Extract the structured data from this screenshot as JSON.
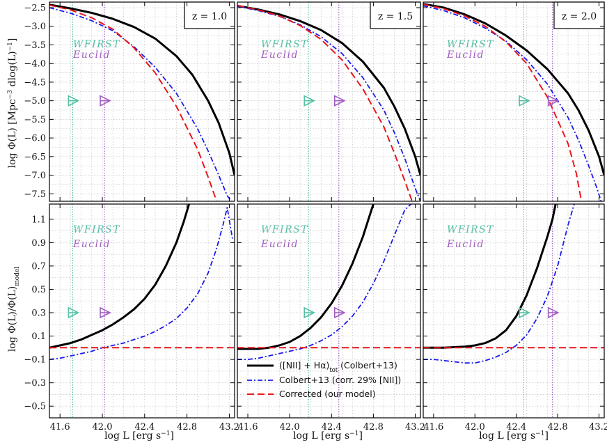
{
  "figure": {
    "colors": {
      "black": "#000000",
      "blue": "#1a1aee",
      "red": "#e8161c",
      "wfirst": "#55bfa4",
      "euclid": "#a05cc0",
      "grid": "#c7c7c7"
    },
    "legend": {
      "colbert_tot": {
        "pre": "([NII] + H",
        "alpha": "α",
        "mid": ")",
        "sub": "tot",
        "post": " (Colbert+13)"
      },
      "colbert_corr": "Colbert+13 (corr. 29% [NII])",
      "corrected": "Corrected (our model)"
    },
    "survey_labels": {
      "wfirst": "WFIRST",
      "euclid": "Euclid"
    },
    "axis_titles": {
      "x": {
        "pre": "log L [erg s",
        "sup": "−1",
        "post": "]"
      },
      "y_top": {
        "pre": "log Φ(L) [Mpc",
        "sup1": "−3",
        "mid": " dlog(L)",
        "sup2": "−1",
        "post": "]"
      },
      "y_bottom": {
        "pre": "log Φ(L)/Φ(L)",
        "sub": "model"
      }
    }
  },
  "chart_data": [
    {
      "type": "line",
      "panel": "top-left",
      "label": "z = 1.0",
      "xlim": [
        41.5,
        43.25
      ],
      "ylim": [
        -7.7,
        -2.35
      ],
      "xticks": [
        "41.6",
        "42.0",
        "42.4",
        "42.8",
        "43.2"
      ],
      "yticks": [
        "-2.5",
        "-3.0",
        "-3.5",
        "-4.0",
        "-4.5",
        "-5.0",
        "-5.5",
        "-6.0",
        "-6.5",
        "-7.0",
        "-7.5"
      ],
      "vlines": {
        "wfirst": 41.72,
        "euclid": 42.02
      },
      "arrows": {
        "y": -5.0
      },
      "series": [
        {
          "name": "colbert_tot",
          "style": "solid",
          "x": [
            41.5,
            41.7,
            41.9,
            42.1,
            42.3,
            42.5,
            42.7,
            42.85,
            43.0,
            43.1,
            43.2,
            43.25
          ],
          "y": [
            -2.42,
            -2.52,
            -2.64,
            -2.8,
            -3.02,
            -3.33,
            -3.8,
            -4.3,
            -5.0,
            -5.6,
            -6.4,
            -7.0
          ]
        },
        {
          "name": "colbert_corr",
          "style": "dashdot",
          "x": [
            41.5,
            41.7,
            41.9,
            42.1,
            42.3,
            42.5,
            42.7,
            42.9,
            43.0,
            43.1,
            43.18,
            43.22
          ],
          "y": [
            -2.5,
            -2.65,
            -2.85,
            -3.12,
            -3.55,
            -4.1,
            -4.8,
            -5.75,
            -6.35,
            -7.0,
            -7.55,
            -7.7
          ]
        },
        {
          "name": "corrected",
          "style": "dashed",
          "x": [
            41.5,
            41.7,
            41.9,
            42.1,
            42.3,
            42.5,
            42.7,
            42.9,
            43.0,
            43.08
          ],
          "y": [
            -2.43,
            -2.56,
            -2.77,
            -3.08,
            -3.58,
            -4.25,
            -5.15,
            -6.3,
            -7.05,
            -7.7
          ]
        }
      ]
    },
    {
      "type": "line",
      "panel": "top-middle",
      "label": "z = 1.5",
      "xlim": [
        41.5,
        43.25
      ],
      "ylim": [
        -7.7,
        -2.35
      ],
      "xticks": [
        "41.6",
        "42.0",
        "42.4",
        "42.8",
        "43.2"
      ],
      "yticks": [
        "-2.5",
        "-3.0",
        "-3.5",
        "-4.0",
        "-4.5",
        "-5.0",
        "-5.5",
        "-6.0",
        "-6.5",
        "-7.0",
        "-7.5"
      ],
      "vlines": {
        "wfirst": 42.18,
        "euclid": 42.47
      },
      "arrows": {
        "y": -5.0
      },
      "series": [
        {
          "name": "colbert_tot",
          "style": "solid",
          "x": [
            41.5,
            41.7,
            41.9,
            42.1,
            42.3,
            42.5,
            42.7,
            42.9,
            43.0,
            43.1,
            43.2,
            43.25
          ],
          "y": [
            -2.45,
            -2.55,
            -2.68,
            -2.86,
            -3.1,
            -3.45,
            -3.95,
            -4.65,
            -5.15,
            -5.75,
            -6.5,
            -7.0
          ]
        },
        {
          "name": "colbert_corr",
          "style": "dashdot",
          "x": [
            41.5,
            41.7,
            41.9,
            42.1,
            42.3,
            42.5,
            42.7,
            42.9,
            43.0,
            43.1,
            43.2,
            43.25
          ],
          "y": [
            -2.46,
            -2.58,
            -2.73,
            -2.96,
            -3.28,
            -3.73,
            -4.38,
            -5.25,
            -5.85,
            -6.55,
            -7.35,
            -7.7
          ]
        },
        {
          "name": "corrected",
          "style": "dashed",
          "x": [
            41.5,
            41.7,
            41.9,
            42.1,
            42.3,
            42.5,
            42.7,
            42.9,
            43.0,
            43.1,
            43.17
          ],
          "y": [
            -2.44,
            -2.56,
            -2.72,
            -2.98,
            -3.35,
            -3.9,
            -4.68,
            -5.7,
            -6.4,
            -7.15,
            -7.7
          ]
        }
      ]
    },
    {
      "type": "line",
      "panel": "top-right",
      "label": "z = 2.0",
      "xlim": [
        41.5,
        43.25
      ],
      "ylim": [
        -7.7,
        -2.35
      ],
      "xticks": [
        "41.6",
        "42.0",
        "42.4",
        "42.8",
        "43.2"
      ],
      "yticks": [
        "-2.5",
        "-3.0",
        "-3.5",
        "-4.0",
        "-4.5",
        "-5.0",
        "-5.5",
        "-6.0",
        "-6.5",
        "-7.0",
        "-7.5"
      ],
      "vlines": {
        "wfirst": 42.47,
        "euclid": 42.75
      },
      "arrows": {
        "y": -5.0
      },
      "series": [
        {
          "name": "colbert_tot",
          "style": "solid",
          "x": [
            41.5,
            41.7,
            41.9,
            42.1,
            42.3,
            42.5,
            42.7,
            42.9,
            43.0,
            43.1,
            43.2,
            43.25
          ],
          "y": [
            -2.4,
            -2.5,
            -2.68,
            -2.92,
            -3.25,
            -3.65,
            -4.15,
            -4.8,
            -5.25,
            -5.8,
            -6.5,
            -7.0
          ]
        },
        {
          "name": "colbert_corr",
          "style": "dashdot",
          "x": [
            41.5,
            41.7,
            41.9,
            42.1,
            42.3,
            42.5,
            42.7,
            42.9,
            43.0,
            43.1,
            43.18,
            43.22
          ],
          "y": [
            -2.45,
            -2.58,
            -2.77,
            -3.05,
            -3.4,
            -3.9,
            -4.55,
            -5.45,
            -6.05,
            -6.75,
            -7.35,
            -7.7
          ]
        },
        {
          "name": "corrected",
          "style": "dashed",
          "x": [
            41.5,
            41.7,
            41.9,
            42.1,
            42.3,
            42.5,
            42.7,
            42.9,
            42.98,
            43.03
          ],
          "y": [
            -2.41,
            -2.53,
            -2.72,
            -3.0,
            -3.42,
            -4.0,
            -4.9,
            -6.15,
            -6.95,
            -7.7
          ]
        }
      ]
    },
    {
      "type": "line",
      "panel": "bottom-left",
      "xlim": [
        41.5,
        43.25
      ],
      "ylim": [
        -0.6,
        1.23
      ],
      "xticks": [
        "41.6",
        "42.0",
        "42.4",
        "42.8",
        "43.2"
      ],
      "yticks": [
        "1.1",
        "0.9",
        "0.7",
        "0.5",
        "0.3",
        "0.1",
        "-0.1",
        "-0.3",
        "-0.5"
      ],
      "vlines": {
        "wfirst": 41.72,
        "euclid": 42.02
      },
      "arrows": {
        "y": 0.3
      },
      "series": [
        {
          "name": "colbert_tot",
          "style": "solid",
          "x": [
            41.5,
            41.6,
            41.7,
            41.8,
            41.9,
            42.0,
            42.1,
            42.2,
            42.3,
            42.4,
            42.5,
            42.6,
            42.7,
            42.77,
            42.82
          ],
          "y": [
            0.0,
            0.02,
            0.04,
            0.07,
            0.11,
            0.15,
            0.2,
            0.26,
            0.33,
            0.42,
            0.54,
            0.7,
            0.9,
            1.08,
            1.23
          ]
        },
        {
          "name": "colbert_corr",
          "style": "dashdot",
          "x": [
            41.5,
            41.6,
            41.7,
            41.8,
            41.9,
            42.0,
            42.1,
            42.2,
            42.3,
            42.4,
            42.5,
            42.6,
            42.7,
            42.8,
            42.9,
            43.0,
            43.08,
            43.14,
            43.18,
            43.23
          ],
          "y": [
            -0.1,
            -0.09,
            -0.07,
            -0.05,
            -0.03,
            0.0,
            0.02,
            0.04,
            0.07,
            0.1,
            0.14,
            0.19,
            0.25,
            0.34,
            0.46,
            0.64,
            0.85,
            1.05,
            1.2,
            0.93
          ]
        },
        {
          "name": "corrected",
          "style": "dashed",
          "x": [
            41.5,
            43.25
          ],
          "y": [
            0.0,
            0.0
          ]
        }
      ]
    },
    {
      "type": "line",
      "panel": "bottom-middle",
      "xlim": [
        41.5,
        43.25
      ],
      "ylim": [
        -0.6,
        1.23
      ],
      "xticks": [
        "41.6",
        "42.0",
        "42.4",
        "42.8",
        "43.2"
      ],
      "yticks": [
        "1.1",
        "0.9",
        "0.7",
        "0.5",
        "0.3",
        "0.1",
        "-0.1",
        "-0.3",
        "-0.5"
      ],
      "vlines": {
        "wfirst": 42.18,
        "euclid": 42.47
      },
      "arrows": {
        "y": 0.3
      },
      "series": [
        {
          "name": "colbert_tot",
          "style": "solid",
          "x": [
            41.5,
            41.6,
            41.7,
            41.8,
            41.9,
            42.0,
            42.1,
            42.2,
            42.3,
            42.4,
            42.5,
            42.6,
            42.7,
            42.76,
            42.8
          ],
          "y": [
            -0.01,
            -0.01,
            -0.01,
            0.0,
            0.02,
            0.05,
            0.1,
            0.17,
            0.26,
            0.38,
            0.53,
            0.72,
            0.95,
            1.12,
            1.23
          ]
        },
        {
          "name": "colbert_corr",
          "style": "dashdot",
          "x": [
            41.5,
            41.6,
            41.7,
            41.8,
            41.9,
            42.0,
            42.1,
            42.2,
            42.3,
            42.4,
            42.5,
            42.6,
            42.7,
            42.8,
            42.9,
            43.0,
            43.1,
            43.16
          ],
          "y": [
            -0.1,
            -0.1,
            -0.09,
            -0.07,
            -0.05,
            -0.03,
            -0.01,
            0.02,
            0.06,
            0.11,
            0.18,
            0.27,
            0.39,
            0.55,
            0.74,
            0.96,
            1.18,
            1.23
          ]
        },
        {
          "name": "corrected",
          "style": "dashed",
          "x": [
            41.5,
            43.25
          ],
          "y": [
            0.0,
            0.0
          ]
        }
      ]
    },
    {
      "type": "line",
      "panel": "bottom-right",
      "xlim": [
        41.5,
        43.25
      ],
      "ylim": [
        -0.6,
        1.23
      ],
      "xticks": [
        "41.6",
        "42.0",
        "42.4",
        "42.8",
        "43.2"
      ],
      "yticks": [
        "1.1",
        "0.9",
        "0.7",
        "0.5",
        "0.3",
        "0.1",
        "-0.1",
        "-0.3",
        "-0.5"
      ],
      "vlines": {
        "wfirst": 42.47,
        "euclid": 42.75
      },
      "arrows": {
        "y": 0.3
      },
      "series": [
        {
          "name": "colbert_tot",
          "style": "solid",
          "x": [
            41.5,
            41.7,
            41.9,
            42.0,
            42.1,
            42.2,
            42.3,
            42.4,
            42.5,
            42.6,
            42.7,
            42.75,
            42.78
          ],
          "y": [
            0.0,
            0.0,
            0.01,
            0.02,
            0.04,
            0.08,
            0.15,
            0.27,
            0.45,
            0.68,
            0.95,
            1.1,
            1.23
          ]
        },
        {
          "name": "colbert_corr",
          "style": "dashdot",
          "x": [
            41.5,
            41.6,
            41.7,
            41.8,
            41.9,
            42.0,
            42.1,
            42.2,
            42.3,
            42.4,
            42.5,
            42.6,
            42.7,
            42.8,
            42.9,
            42.96
          ],
          "y": [
            -0.1,
            -0.1,
            -0.11,
            -0.12,
            -0.13,
            -0.13,
            -0.11,
            -0.08,
            -0.04,
            0.02,
            0.11,
            0.25,
            0.44,
            0.7,
            1.05,
            1.23
          ]
        },
        {
          "name": "corrected",
          "style": "dashed",
          "x": [
            41.5,
            43.25
          ],
          "y": [
            0.0,
            0.0
          ]
        }
      ]
    }
  ]
}
